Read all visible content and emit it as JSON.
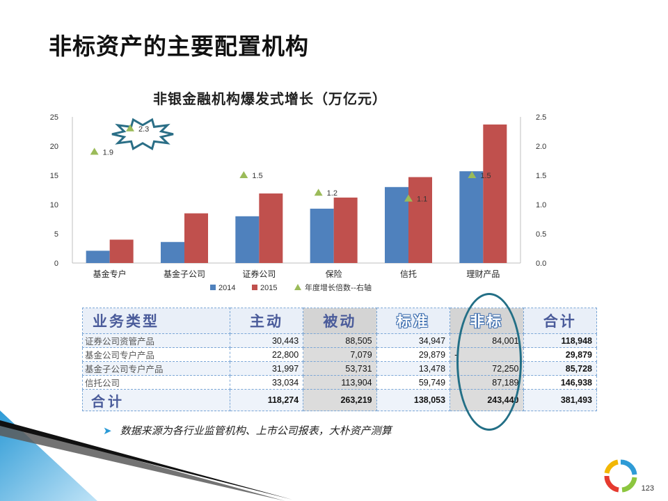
{
  "slide": {
    "title": "非标资产的主要配置机构",
    "page_number": "123",
    "note": "数据来源为各行业监管机构、上市公司报表，大朴资产测算"
  },
  "chart_data": {
    "type": "bar",
    "title": "非银金融机构爆发式增长（万亿元）",
    "categories": [
      "基金专户",
      "基金子公司",
      "证券公司",
      "保险",
      "信托",
      "理财产品"
    ],
    "series": [
      {
        "name": "2014",
        "type": "bar",
        "axis": "left",
        "color": "#4f81bd",
        "values": [
          2.1,
          3.6,
          8.0,
          9.3,
          13.0,
          15.7
        ]
      },
      {
        "name": "2015",
        "type": "bar",
        "axis": "left",
        "color": "#c0504d",
        "values": [
          4.0,
          8.5,
          11.9,
          11.2,
          14.7,
          23.7
        ]
      },
      {
        "name": "年度增长倍数--右轴",
        "type": "scatter",
        "axis": "right",
        "color": "#9bbb59",
        "values": [
          1.9,
          2.3,
          1.5,
          1.2,
          1.1,
          1.5
        ],
        "labels": [
          "1.9",
          "2.3",
          "1.5",
          "1.2",
          "1.1",
          "1.5"
        ]
      }
    ],
    "y_left": {
      "min": 0,
      "max": 25,
      "ticks": [
        "0",
        "5",
        "10",
        "15",
        "20",
        "25"
      ]
    },
    "y_right": {
      "min": 0,
      "max": 2.5,
      "ticks": [
        "0.0",
        "0.5",
        "1.0",
        "1.5",
        "2.0",
        "2.5"
      ]
    },
    "legend": {
      "placement": "bottom",
      "items": [
        "2014",
        "2015",
        "年度增长倍数--右轴"
      ]
    },
    "highlight": {
      "category_index": 1,
      "label": "2.3",
      "shape": "starburst",
      "color": "#2a6e86"
    }
  },
  "table": {
    "headers": [
      "业务类型",
      "主动",
      "被动",
      "标准",
      "非标",
      "合计"
    ],
    "rows": [
      {
        "name": "证券公司资管产品",
        "active": "30,443",
        "passive": "88,505",
        "standard": "34,947",
        "nonstandard": "84,001",
        "total": "118,948"
      },
      {
        "name": "基金公司专户产品",
        "active": "22,800",
        "passive": "7,079",
        "standard": "29,879",
        "nonstandard": "-",
        "total": "29,879"
      },
      {
        "name": "基金子公司专户产品",
        "active": "31,997",
        "passive": "53,731",
        "standard": "13,478",
        "nonstandard": "72,250",
        "total": "85,728"
      },
      {
        "name": "信托公司",
        "active": "33,034",
        "passive": "113,904",
        "standard": "59,749",
        "nonstandard": "87,189",
        "total": "146,938"
      }
    ],
    "total_row": {
      "name": "合计",
      "active": "118,274",
      "passive": "263,219",
      "standard": "138,053",
      "nonstandard": "243,440",
      "total": "381,493"
    }
  }
}
